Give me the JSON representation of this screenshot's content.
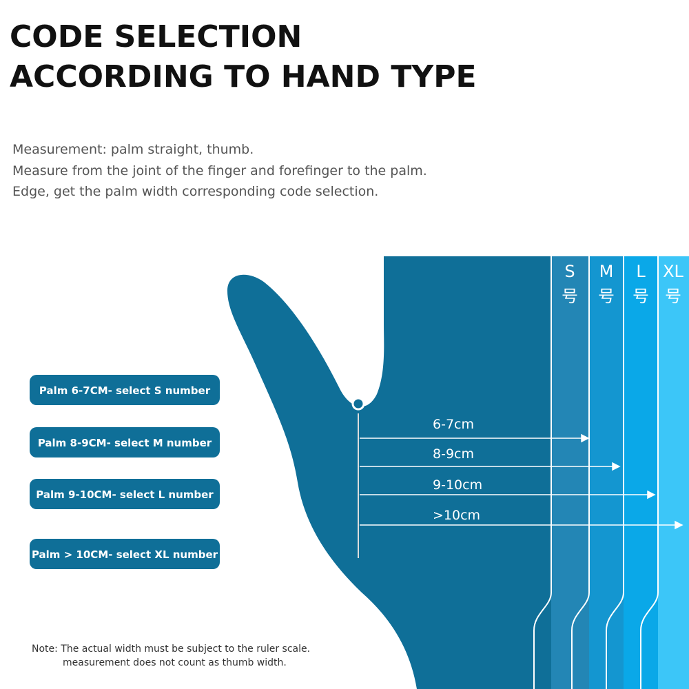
{
  "header": {
    "title": [
      "CODE SELECTION",
      "ACCORDING TO HAND TYPE"
    ]
  },
  "description": [
    "Measurement: palm straight, thumb.",
    "Measure from the joint of the finger and forefinger to the palm.",
    "Edge, get the palm width corresponding code selection."
  ],
  "sizes": [
    {
      "label": "S",
      "suffix": "号"
    },
    {
      "label": "M",
      "suffix": "号"
    },
    {
      "label": "L",
      "suffix": "号"
    },
    {
      "label": "XL",
      "suffix": "号"
    }
  ],
  "buttons": [
    "Palm 6-7CM- select S number",
    "Palm 8-9CM-  select M number",
    "Palm 9-10CM-  select L number",
    "Palm > 10CM-  select XL number"
  ],
  "arrows": [
    "6-7cm",
    "8-9cm",
    "9-10cm",
    ">10cm"
  ],
  "note": [
    "Note: The actual width must be subject to the ruler scale.",
    "measurement does not count as thumb width."
  ]
}
